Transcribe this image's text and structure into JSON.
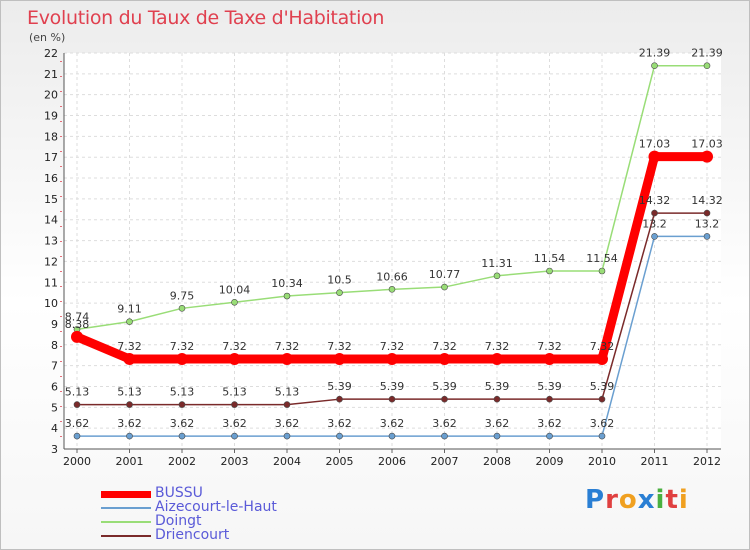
{
  "title": "Evolution du Taux de Taxe d'Habitation",
  "subtitle": "(en %)",
  "logo_text": "Proxiti",
  "chart_data": {
    "type": "line",
    "title": "Evolution du Taux de Taxe d'Habitation",
    "subtitle": "(en %)",
    "xlabel": "",
    "ylabel": "",
    "ylim": [
      3,
      22
    ],
    "yticks": [
      3,
      4,
      5,
      6,
      7,
      8,
      9,
      10,
      11,
      12,
      13,
      14,
      15,
      16,
      17,
      18,
      19,
      20,
      21,
      22
    ],
    "grid": true,
    "legend_position": "bottom-left",
    "x": [
      "2000",
      "2001",
      "2002",
      "2003",
      "2004",
      "2005",
      "2006",
      "2007",
      "2008",
      "2009",
      "2010",
      "2011",
      "2012"
    ],
    "series": [
      {
        "name": "BUSSU",
        "color": "#ff0000",
        "values": [
          8.38,
          7.32,
          7.32,
          7.32,
          7.32,
          7.32,
          7.32,
          7.32,
          7.32,
          7.32,
          7.32,
          17.03,
          17.03
        ],
        "labels": [
          "8.38",
          "7.32",
          "7.32",
          "7.32",
          "7.32",
          "7.32",
          "7.32",
          "7.32",
          "7.32",
          "7.32",
          "7.32",
          "17.03",
          "17.03"
        ]
      },
      {
        "name": "Aizecourt-le-Haut",
        "color": "#6a9fd0",
        "values": [
          3.62,
          3.62,
          3.62,
          3.62,
          3.62,
          3.62,
          3.62,
          3.62,
          3.62,
          3.62,
          3.62,
          13.2,
          13.2
        ],
        "labels": [
          "3.62",
          "3.62",
          "3.62",
          "3.62",
          "3.62",
          "3.62",
          "3.62",
          "3.62",
          "3.62",
          "3.62",
          "3.62",
          "13.2",
          "13.2"
        ]
      },
      {
        "name": "Doingt",
        "color": "#99dd77",
        "values": [
          8.74,
          9.11,
          9.75,
          10.04,
          10.34,
          10.5,
          10.66,
          10.77,
          11.31,
          11.54,
          11.54,
          21.39,
          21.39
        ],
        "labels": [
          "8.74",
          "9.11",
          "9.75",
          "10.04",
          "10.34",
          "10.5",
          "10.66",
          "10.77",
          "11.31",
          "11.54",
          "11.54",
          "21.39",
          "21.39"
        ]
      },
      {
        "name": "Driencourt",
        "color": "#7a2a2a",
        "values": [
          5.13,
          5.13,
          5.13,
          5.13,
          5.13,
          5.39,
          5.39,
          5.39,
          5.39,
          5.39,
          5.39,
          14.32,
          14.32
        ],
        "labels": [
          "5.13",
          "5.13",
          "5.13",
          "5.13",
          "5.13",
          "5.39",
          "5.39",
          "5.39",
          "5.39",
          "5.39",
          "5.39",
          "14.32",
          "14.32"
        ]
      }
    ]
  }
}
